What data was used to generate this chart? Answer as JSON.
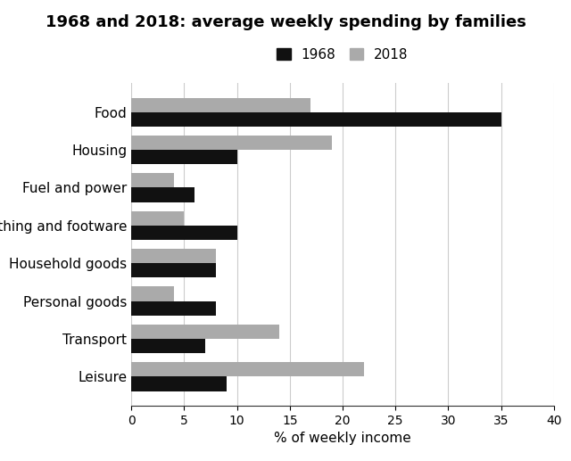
{
  "title": "1968 and 2018: average weekly spending by families",
  "categories": [
    "Food",
    "Housing",
    "Fuel and power",
    "Clothing and footware",
    "Household goods",
    "Personal goods",
    "Transport",
    "Leisure"
  ],
  "values_1968": [
    35,
    10,
    6,
    10,
    8,
    8,
    7,
    9
  ],
  "values_2018": [
    17,
    19,
    4,
    5,
    8,
    4,
    14,
    22
  ],
  "color_1968": "#111111",
  "color_2018": "#aaaaaa",
  "xlabel": "% of weekly income",
  "xlim": [
    0,
    40
  ],
  "xticks": [
    0,
    5,
    10,
    15,
    20,
    25,
    30,
    35,
    40
  ],
  "legend_labels": [
    "1968",
    "2018"
  ],
  "bar_height": 0.38,
  "grid_color": "#cccccc",
  "background_color": "#ffffff",
  "title_fontsize": 13,
  "label_fontsize": 11,
  "tick_fontsize": 10
}
